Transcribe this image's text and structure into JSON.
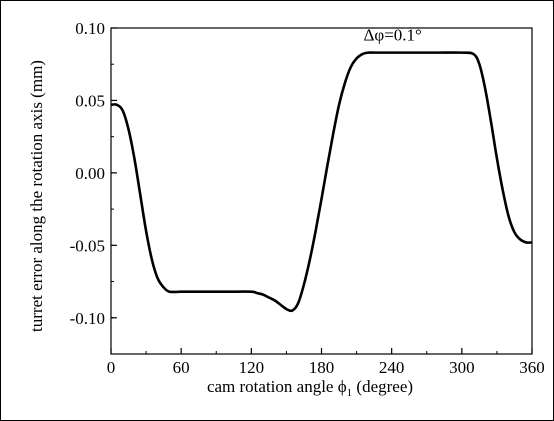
{
  "chart_data": {
    "type": "line",
    "title": "",
    "xlabel": "cam rotation angle ϕ",
    "xlabel_subscript": "1",
    "xlabel_suffix": " (degree)",
    "ylabel": "turret error along the rotation axis (mm)",
    "xlim": [
      0,
      360
    ],
    "ylim": [
      -0.125,
      0.1
    ],
    "xticks": [
      0,
      60,
      120,
      180,
      240,
      300,
      360
    ],
    "yticks": [
      -0.1,
      -0.05,
      0.0,
      0.05,
      0.1
    ],
    "xtick_labels": [
      "0",
      "60",
      "120",
      "180",
      "240",
      "300",
      "360"
    ],
    "ytick_labels": [
      "-0.10",
      "-0.05",
      "0.00",
      "0.05",
      "0.10"
    ],
    "annotation": {
      "text": "Δφ=0.1°",
      "x": 240,
      "y": 0.088
    },
    "grid": false,
    "series": [
      {
        "color": "#000000",
        "x": [
          0,
          5,
          10,
          15,
          20,
          25,
          30,
          35,
          40,
          45,
          50,
          60,
          80,
          100,
          120,
          125,
          130,
          135,
          140,
          145,
          150,
          155,
          160,
          165,
          170,
          175,
          180,
          185,
          190,
          195,
          200,
          205,
          210,
          215,
          220,
          225,
          230,
          240,
          260,
          280,
          300,
          310,
          315,
          320,
          325,
          330,
          335,
          340,
          345,
          350,
          355,
          360
        ],
        "y": [
          0.047,
          0.047,
          0.043,
          0.03,
          0.01,
          -0.015,
          -0.04,
          -0.06,
          -0.073,
          -0.079,
          -0.082,
          -0.082,
          -0.082,
          -0.082,
          -0.082,
          -0.083,
          -0.084,
          -0.086,
          -0.088,
          -0.091,
          -0.094,
          -0.095,
          -0.09,
          -0.077,
          -0.06,
          -0.04,
          -0.018,
          0.005,
          0.027,
          0.047,
          0.062,
          0.073,
          0.079,
          0.082,
          0.083,
          0.083,
          0.083,
          0.083,
          0.083,
          0.083,
          0.083,
          0.082,
          0.075,
          0.058,
          0.035,
          0.01,
          -0.012,
          -0.03,
          -0.041,
          -0.046,
          -0.048,
          -0.048
        ]
      }
    ]
  }
}
